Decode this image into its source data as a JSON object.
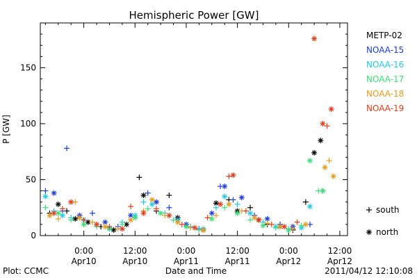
{
  "chart_data": {
    "type": "scatter",
    "title": "Hemispheric Power [GW]",
    "xlabel": "Date and Time",
    "ylabel": "P [GW]",
    "ylim": [
      0,
      190
    ],
    "y_ticks": [
      0,
      50,
      100,
      150
    ],
    "x_range_hours": [
      0,
      46
    ],
    "x_ticks": [
      {
        "h": 9,
        "label": "0:00",
        "date": "Apr10"
      },
      {
        "h": 21,
        "label": "12:00",
        "date": "Apr10"
      },
      {
        "h": 33,
        "label": "0:00",
        "date": "Apr11"
      },
      {
        "h": 45,
        "label": "12:00",
        "date": "Apr11"
      },
      {
        "h": 57,
        "label": "0:00",
        "date": "Apr12"
      },
      {
        "h": 69,
        "label": "12:00",
        "date": "Apr12"
      }
    ],
    "x_view_hours": [
      -1.2,
      70.8
    ],
    "grid": false,
    "legend_position": "right",
    "markers": {
      "south": "+",
      "north": "*"
    },
    "marker_legend": [
      {
        "symbol": "+",
        "label": "south"
      },
      {
        "symbol": "*",
        "label": "north"
      }
    ],
    "series": [
      {
        "name": "METP-02",
        "color": "#000000",
        "points": [
          [
            1,
            20,
            "s"
          ],
          [
            3,
            28,
            "n"
          ],
          [
            5,
            22,
            "s"
          ],
          [
            7,
            15,
            "n"
          ],
          [
            10,
            12,
            "n"
          ],
          [
            13,
            8,
            "s"
          ],
          [
            16,
            5,
            "n"
          ],
          [
            19,
            10,
            "n"
          ],
          [
            22,
            52,
            "s"
          ],
          [
            23,
            36,
            "n"
          ],
          [
            26,
            22,
            "s"
          ],
          [
            29,
            36,
            "s"
          ],
          [
            31,
            16,
            "n"
          ],
          [
            34,
            8,
            "s"
          ],
          [
            37,
            5,
            "n"
          ],
          [
            40,
            29,
            "n"
          ],
          [
            43,
            32,
            "s"
          ],
          [
            45,
            22,
            "n"
          ],
          [
            48,
            25,
            "s"
          ],
          [
            50,
            14,
            "n"
          ],
          [
            52,
            10,
            "s"
          ],
          [
            55,
            8,
            "n"
          ],
          [
            58,
            5,
            "s"
          ],
          [
            61,
            30,
            "s"
          ],
          [
            63,
            74,
            "n"
          ],
          [
            64.5,
            85,
            "n"
          ],
          [
            65,
            40,
            "s"
          ]
        ]
      },
      {
        "name": "NOAA-15",
        "color": "#1a3cd8",
        "points": [
          [
            0,
            40,
            "s"
          ],
          [
            2,
            38,
            "n"
          ],
          [
            4,
            22,
            "s"
          ],
          [
            5,
            78,
            "s"
          ],
          [
            8,
            18,
            "n"
          ],
          [
            11,
            20,
            "s"
          ],
          [
            14,
            12,
            "n"
          ],
          [
            17,
            8,
            "s"
          ],
          [
            20,
            18,
            "n"
          ],
          [
            24,
            38,
            "s"
          ],
          [
            26,
            30,
            "n"
          ],
          [
            29,
            25,
            "s"
          ],
          [
            33,
            10,
            "n"
          ],
          [
            36,
            6,
            "s"
          ],
          [
            39,
            20,
            "n"
          ],
          [
            41,
            44,
            "s"
          ],
          [
            42,
            44,
            "n"
          ],
          [
            44,
            32,
            "s"
          ],
          [
            46,
            34,
            "n"
          ],
          [
            49,
            18,
            "s"
          ],
          [
            52,
            15,
            "n"
          ],
          [
            55,
            10,
            "s"
          ],
          [
            58,
            8,
            "n"
          ],
          [
            62,
            10,
            "s"
          ]
        ]
      },
      {
        "name": "NOAA-16",
        "color": "#20c8e6",
        "points": [
          [
            0,
            35,
            "n"
          ],
          [
            2,
            22,
            "s"
          ],
          [
            4,
            18,
            "n"
          ],
          [
            6,
            16,
            "s"
          ],
          [
            9,
            14,
            "n"
          ],
          [
            12,
            10,
            "s"
          ],
          [
            15,
            7,
            "n"
          ],
          [
            18,
            12,
            "s"
          ],
          [
            21,
            18,
            "n"
          ],
          [
            23,
            30,
            "s"
          ],
          [
            25,
            28,
            "n"
          ],
          [
            28,
            20,
            "s"
          ],
          [
            31,
            14,
            "n"
          ],
          [
            34,
            8,
            "s"
          ],
          [
            37,
            6,
            "n"
          ],
          [
            40,
            25,
            "s"
          ],
          [
            42,
            35,
            "n"
          ],
          [
            45,
            28,
            "s"
          ],
          [
            48,
            20,
            "n"
          ],
          [
            51,
            12,
            "s"
          ],
          [
            54,
            8,
            "n"
          ],
          [
            57,
            6,
            "s"
          ],
          [
            60,
            7,
            "n"
          ],
          [
            62,
            26,
            "n"
          ]
        ]
      },
      {
        "name": "NOAA-17",
        "color": "#3cdc78",
        "points": [
          [
            0,
            25,
            "s"
          ],
          [
            3,
            20,
            "n"
          ],
          [
            6,
            14,
            "s"
          ],
          [
            9,
            10,
            "n"
          ],
          [
            12,
            8,
            "s"
          ],
          [
            15,
            6,
            "n"
          ],
          [
            18,
            10,
            "s"
          ],
          [
            21,
            16,
            "n"
          ],
          [
            24,
            24,
            "s"
          ],
          [
            27,
            20,
            "n"
          ],
          [
            30,
            14,
            "s"
          ],
          [
            33,
            8,
            "n"
          ],
          [
            36,
            5,
            "s"
          ],
          [
            39,
            15,
            "n"
          ],
          [
            42,
            25,
            "s"
          ],
          [
            45,
            20,
            "n"
          ],
          [
            48,
            14,
            "s"
          ],
          [
            51,
            9,
            "n"
          ],
          [
            54,
            7,
            "s"
          ],
          [
            57,
            5,
            "n"
          ],
          [
            60,
            9,
            "s"
          ],
          [
            62,
            67,
            "n"
          ],
          [
            64,
            40,
            "s"
          ],
          [
            65,
            40,
            "n"
          ]
        ]
      },
      {
        "name": "NOAA-18",
        "color": "#e89a1a",
        "points": [
          [
            1,
            18,
            "n"
          ],
          [
            3,
            15,
            "s"
          ],
          [
            7,
            30,
            "s"
          ],
          [
            8,
            16,
            "n"
          ],
          [
            11,
            12,
            "s"
          ],
          [
            14,
            8,
            "n"
          ],
          [
            17,
            6,
            "s"
          ],
          [
            20,
            14,
            "n"
          ],
          [
            23,
            22,
            "s"
          ],
          [
            25,
            32,
            "n"
          ],
          [
            28,
            18,
            "s"
          ],
          [
            31,
            12,
            "n"
          ],
          [
            34,
            7,
            "s"
          ],
          [
            37,
            5,
            "n"
          ],
          [
            40,
            18,
            "s"
          ],
          [
            43,
            28,
            "n"
          ],
          [
            46,
            22,
            "s"
          ],
          [
            49,
            16,
            "n"
          ],
          [
            52,
            11,
            "s"
          ],
          [
            55,
            8,
            "n"
          ],
          [
            58,
            6,
            "s"
          ],
          [
            61,
            10,
            "n"
          ],
          [
            65.5,
            61,
            "n"
          ],
          [
            66.5,
            67,
            "s"
          ],
          [
            67.5,
            53,
            "n"
          ]
        ]
      },
      {
        "name": "NOAA-19",
        "color": "#e23a1a",
        "points": [
          [
            2,
            20,
            "n"
          ],
          [
            4,
            24,
            "s"
          ],
          [
            6,
            30,
            "n"
          ],
          [
            9,
            14,
            "s"
          ],
          [
            12,
            10,
            "n"
          ],
          [
            15,
            8,
            "s"
          ],
          [
            18,
            6,
            "n"
          ],
          [
            20,
            26,
            "s"
          ],
          [
            23,
            20,
            "n"
          ],
          [
            26,
            24,
            "s"
          ],
          [
            29,
            18,
            "n"
          ],
          [
            32,
            10,
            "s"
          ],
          [
            35,
            7,
            "n"
          ],
          [
            38,
            16,
            "s"
          ],
          [
            41,
            28,
            "n"
          ],
          [
            43,
            53,
            "s"
          ],
          [
            44,
            54,
            "n"
          ],
          [
            47,
            22,
            "s"
          ],
          [
            50,
            14,
            "n"
          ],
          [
            53,
            10,
            "s"
          ],
          [
            56,
            8,
            "n"
          ],
          [
            59,
            12,
            "s"
          ],
          [
            63,
            176,
            "n"
          ],
          [
            65,
            100,
            "n"
          ],
          [
            66,
            98,
            "s"
          ],
          [
            67,
            113,
            "n"
          ]
        ]
      }
    ]
  },
  "footer": {
    "left": "Plot: CCMC",
    "right": "2011/04/12 12:10:08"
  }
}
